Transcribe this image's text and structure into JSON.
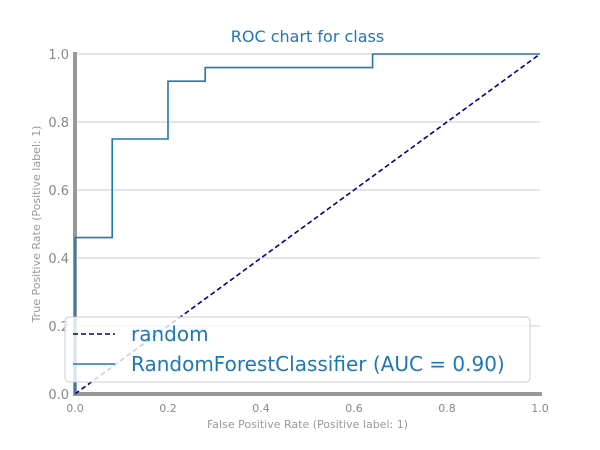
{
  "chart_data": {
    "type": "line",
    "title": "ROC chart for class",
    "xlabel": "False Positive Rate (Positive label: 1)",
    "ylabel": "True Positive Rate (Positive label: 1)",
    "xlim": [
      0,
      1
    ],
    "ylim": [
      0,
      1
    ],
    "x_ticks": [
      "0.0",
      "0.2",
      "0.4",
      "0.6",
      "0.8",
      "1.0"
    ],
    "y_ticks": [
      "0.0",
      "0.2",
      "0.4",
      "0.6",
      "0.8",
      "1.0"
    ],
    "grid": "horizontal",
    "legend_position": "lower-left",
    "series": [
      {
        "name": "random",
        "style": "dashed",
        "color": "#00008b",
        "x": [
          0,
          1
        ],
        "y": [
          0,
          1
        ]
      },
      {
        "name": "RandomForestClassifier (AUC = 0.90)",
        "style": "solid",
        "color": "#1f77b4",
        "x": [
          0,
          0,
          0.08,
          0.08,
          0.2,
          0.2,
          0.28,
          0.28,
          0.64,
          0.64,
          1.0
        ],
        "y": [
          0,
          0.46,
          0.46,
          0.75,
          0.75,
          0.92,
          0.92,
          0.96,
          0.96,
          1.0,
          1.0
        ]
      }
    ],
    "colors": {
      "title": "#1f77b4",
      "tick": "#888888",
      "axis": "#999999",
      "grid": "#d3d3d3"
    }
  }
}
